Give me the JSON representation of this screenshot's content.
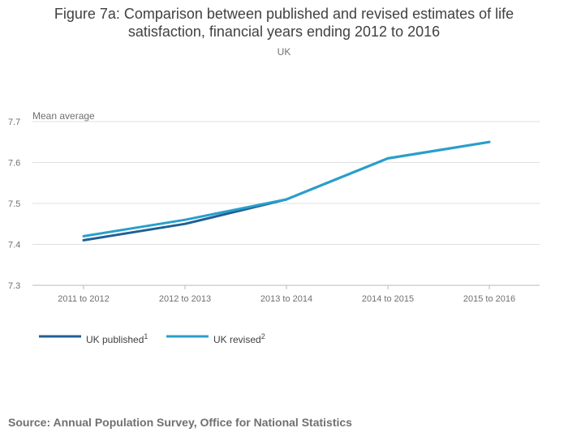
{
  "chart_data": {
    "type": "line",
    "title_line1": "Figure 7a: Comparison between published and revised estimates of life",
    "title_line2": "satisfaction, financial years ending 2012 to 2016",
    "subtitle": "UK",
    "ylabel": "Mean average",
    "xlabel": "",
    "categories": [
      "2011 to 2012",
      "2012 to 2013",
      "2013 to 2014",
      "2014 to 2015",
      "2015 to 2016"
    ],
    "yticks": [
      "7.3",
      "7.4",
      "7.5",
      "7.6",
      "7.7"
    ],
    "ylim": [
      7.3,
      7.7
    ],
    "grid": true,
    "legend_position": "bottom-left",
    "series": [
      {
        "name": "UK published",
        "superscript": "1",
        "color": "#206095",
        "values": [
          7.41,
          7.45,
          7.51,
          7.61,
          7.65
        ]
      },
      {
        "name": "UK revised",
        "superscript": "2",
        "color": "#27a0cc",
        "values": [
          7.42,
          7.46,
          7.51,
          7.61,
          7.65
        ]
      }
    ]
  },
  "source": "Source: Annual Population Survey, Office for National Statistics"
}
